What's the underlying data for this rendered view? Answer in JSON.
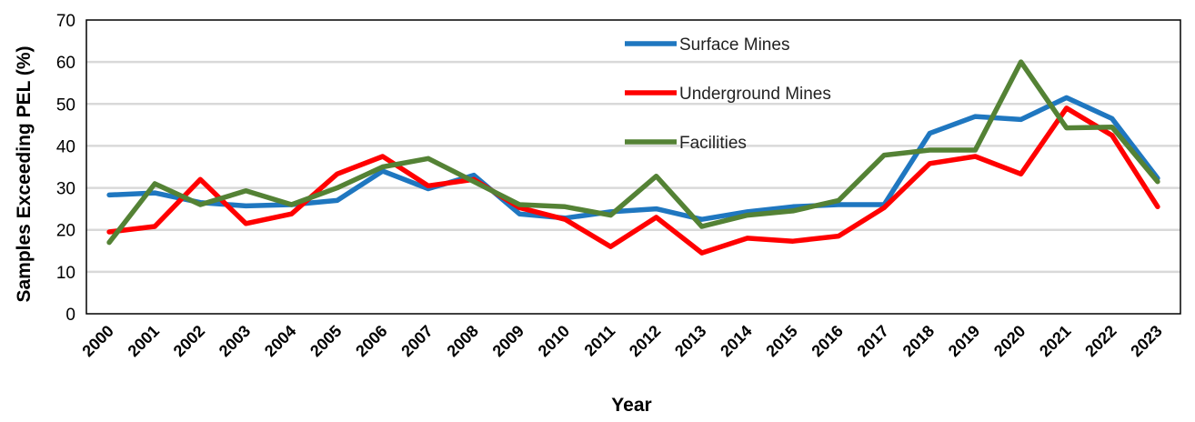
{
  "chart_data": {
    "type": "line",
    "title": "",
    "xlabel": "Year",
    "ylabel": "Samples Exceeding PEL (%)",
    "ylim": [
      0,
      70
    ],
    "yticks": [
      0,
      10,
      20,
      30,
      40,
      50,
      60,
      70
    ],
    "grid": true,
    "legend_position": "top-center",
    "categories": [
      "2000",
      "2001",
      "2002",
      "2003",
      "2004",
      "2005",
      "2006",
      "2007",
      "2008",
      "2009",
      "2010",
      "2011",
      "2012",
      "2013",
      "2014",
      "2015",
      "2016",
      "2017",
      "2018",
      "2019",
      "2020",
      "2021",
      "2022",
      "2023"
    ],
    "series": [
      {
        "name": "Surface Mines",
        "color": "#1F77C0",
        "values": [
          28.3,
          28.8,
          26.5,
          25.7,
          26,
          27,
          34,
          29.8,
          33,
          23.8,
          22.8,
          24.3,
          25,
          22.5,
          24.3,
          25.5,
          26,
          26,
          43,
          47,
          46.3,
          51.5,
          46.5,
          32.3
        ]
      },
      {
        "name": "Underground Mines",
        "color": "#FF0000",
        "values": [
          19.5,
          20.8,
          32,
          21.5,
          23.8,
          33.3,
          37.5,
          30.5,
          32,
          25.3,
          22.5,
          16,
          23,
          14.5,
          18,
          17.3,
          18.5,
          25.3,
          35.8,
          37.5,
          33.3,
          49,
          42.5,
          25.5
        ]
      },
      {
        "name": "Facilities",
        "color": "#548235",
        "values": [
          17,
          31,
          26,
          29.3,
          26,
          30,
          35,
          37,
          31.5,
          26,
          25.5,
          23.5,
          32.8,
          20.8,
          23.5,
          24.5,
          27,
          37.8,
          39,
          39,
          60,
          44.3,
          44.5,
          31.5
        ]
      }
    ]
  }
}
